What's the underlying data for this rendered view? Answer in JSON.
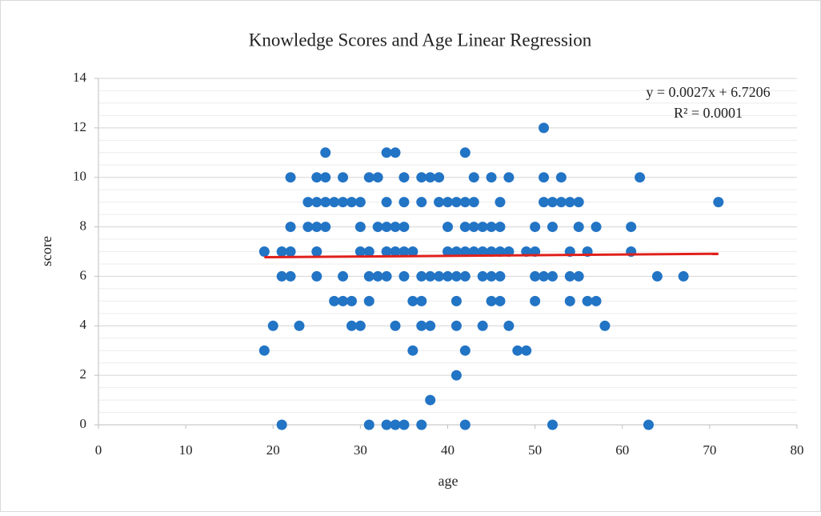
{
  "chart_data": {
    "type": "scatter",
    "title": "Knowledge Scores and Age Linear Regression",
    "x_label": "age",
    "y_label": "score",
    "color": "#2274c5",
    "x": [
      51,
      26,
      33,
      34,
      42,
      22,
      25,
      26,
      28,
      31,
      32,
      35,
      37,
      38,
      39,
      43,
      45,
      47,
      51,
      53,
      62,
      24,
      25,
      26,
      27,
      28,
      29,
      30,
      33,
      35,
      37,
      39,
      40,
      41,
      42,
      43,
      46,
      51,
      52,
      53,
      54,
      55,
      71,
      22,
      24,
      25,
      26,
      30,
      32,
      33,
      34,
      35,
      40,
      42,
      43,
      44,
      45,
      46,
      50,
      52,
      55,
      57,
      61,
      19,
      21,
      22,
      25,
      30,
      31,
      33,
      34,
      35,
      36,
      40,
      41,
      42,
      43,
      44,
      45,
      46,
      47,
      49,
      50,
      54,
      56,
      61,
      21,
      22,
      25,
      28,
      31,
      32,
      33,
      35,
      37,
      38,
      39,
      40,
      41,
      42,
      44,
      45,
      46,
      50,
      51,
      52,
      54,
      55,
      64,
      67,
      27,
      28,
      29,
      31,
      36,
      37,
      41,
      45,
      46,
      50,
      54,
      56,
      57,
      20,
      23,
      29,
      30,
      34,
      37,
      38,
      41,
      44,
      47,
      58,
      19,
      36,
      42,
      48,
      49,
      41,
      38,
      21,
      31,
      33,
      34,
      35,
      37,
      42,
      52,
      63
    ],
    "y": [
      12,
      11,
      11,
      11,
      11,
      10,
      10,
      10,
      10,
      10,
      10,
      10,
      10,
      10,
      10,
      10,
      10,
      10,
      10,
      10,
      10,
      9,
      9,
      9,
      9,
      9,
      9,
      9,
      9,
      9,
      9,
      9,
      9,
      9,
      9,
      9,
      9,
      9,
      9,
      9,
      9,
      9,
      9,
      8,
      8,
      8,
      8,
      8,
      8,
      8,
      8,
      8,
      8,
      8,
      8,
      8,
      8,
      8,
      8,
      8,
      8,
      8,
      8,
      7,
      7,
      7,
      7,
      7,
      7,
      7,
      7,
      7,
      7,
      7,
      7,
      7,
      7,
      7,
      7,
      7,
      7,
      7,
      7,
      7,
      7,
      7,
      6,
      6,
      6,
      6,
      6,
      6,
      6,
      6,
      6,
      6,
      6,
      6,
      6,
      6,
      6,
      6,
      6,
      6,
      6,
      6,
      6,
      6,
      6,
      6,
      5,
      5,
      5,
      5,
      5,
      5,
      5,
      5,
      5,
      5,
      5,
      5,
      5,
      4,
      4,
      4,
      4,
      4,
      4,
      4,
      4,
      4,
      4,
      4,
      3,
      3,
      3,
      3,
      3,
      2,
      1,
      0,
      0,
      0,
      0,
      0,
      0,
      0,
      0,
      0
    ],
    "trendline": {
      "equation": "y = 0.0027x + 6.7206",
      "r2": "R² = 0.0001",
      "slope": 0.0027,
      "intercept": 6.7206,
      "color": "#e0201b"
    },
    "xlim": [
      0,
      80
    ],
    "xticks": [
      0,
      10,
      20,
      30,
      40,
      50,
      60,
      70,
      80
    ],
    "ylim": [
      0,
      14
    ],
    "yticks": [
      0,
      2,
      4,
      6,
      8,
      10,
      12,
      14
    ],
    "grid": true,
    "minor_grid": true
  }
}
